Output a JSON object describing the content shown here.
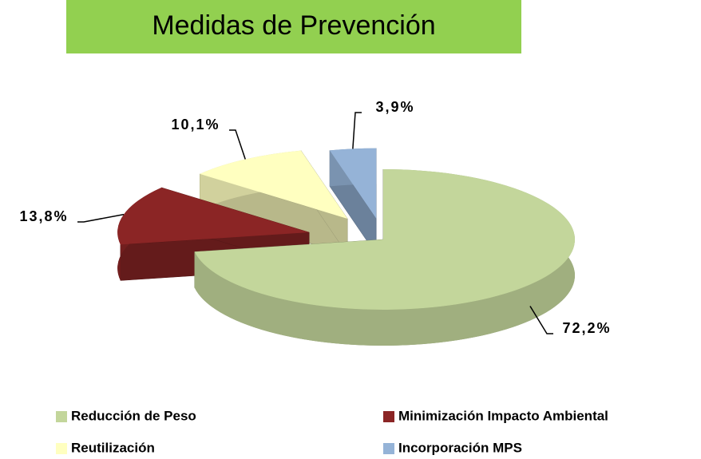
{
  "chart_data": {
    "type": "pie",
    "title": "Medidas de Prevención",
    "categories": [
      "Reducción de Peso",
      "Minimización Impacto Ambiental",
      "Reutilización",
      "Incorporación MPS"
    ],
    "values": [
      72.2,
      13.8,
      10.1,
      3.9
    ],
    "value_labels": [
      "72,2%",
      "13,8%",
      "10,1%",
      "3,9%"
    ],
    "colors": [
      "#c3d69b",
      "#8b2525",
      "#ffffc0",
      "#95b3d7"
    ]
  }
}
